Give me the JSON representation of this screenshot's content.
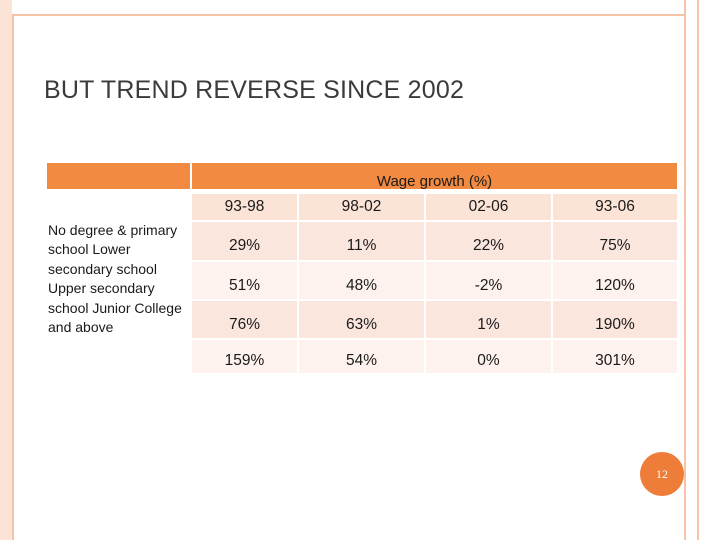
{
  "slide": {
    "title": "BUT TREND REVERSE SINCE 2002",
    "page_number": "12"
  },
  "table": {
    "group_header": "Wage growth (%)",
    "columns": [
      "93-98",
      "98-02",
      "02-06",
      "93-06"
    ],
    "row_labels_text": "No degree & primary school Lower secondary school Upper secondary school Junior College and above",
    "rows": [
      [
        "29%",
        "11%",
        "22%",
        "75%"
      ],
      [
        "51%",
        "48%",
        "-2%",
        "120%"
      ],
      [
        "76%",
        "63%",
        "1%",
        "190%"
      ],
      [
        "159%",
        "54%",
        "0%",
        "301%"
      ]
    ]
  },
  "colors": {
    "header_orange": "#f28a41",
    "frame_peach": "#f6c3a7",
    "badge_orange": "#ee7d3a"
  }
}
